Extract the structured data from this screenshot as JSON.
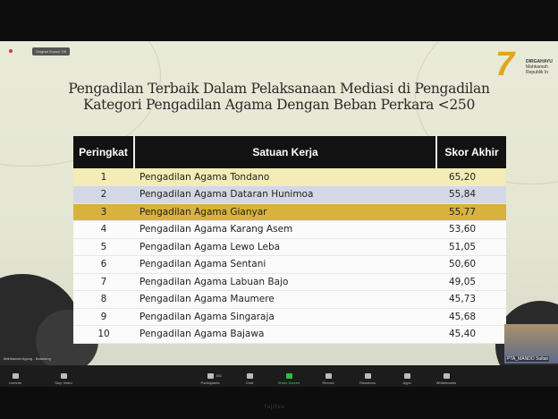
{
  "meeting": {
    "original_sound": "Original Sound: Off",
    "self_name": "Mahkamah Agung - Balairung",
    "thumbnail_name": "PTA_MANDO Sultan",
    "toolbar": [
      {
        "label": "Unmute",
        "icon": "microphone-icon"
      },
      {
        "label": "Stop Video",
        "icon": "video-camera-icon"
      },
      {
        "label": "Participants",
        "icon": "participants-icon",
        "count": "451"
      },
      {
        "label": "Chat",
        "icon": "chat-icon"
      },
      {
        "label": "Share Screen",
        "icon": "share-screen-icon"
      },
      {
        "label": "Record",
        "icon": "record-icon"
      },
      {
        "label": "Reactions",
        "icon": "reactions-icon"
      },
      {
        "label": "Apps",
        "icon": "apps-icon"
      },
      {
        "label": "Whiteboards",
        "icon": "whiteboard-icon"
      }
    ],
    "share_color": "#2fbd3c"
  },
  "slide": {
    "title_line1": "Pengadilan Terbaik Dalam Pelaksanaan Mediasi di Pengadilan",
    "title_line2": "Kategori Pengadilan Agama Dengan Beban Perkara <250",
    "logo_text": [
      "DIRGAHAYU",
      "Mahkamah",
      "Republik In"
    ],
    "table": {
      "headers": [
        "Peringkat",
        "Satuan Kerja",
        "Skor Akhir"
      ],
      "rows": [
        [
          "1",
          "Pengadilan Agama Tondano",
          "65,20"
        ],
        [
          "2",
          "Pengadilan Agama Dataran Hunimoa",
          "55,84"
        ],
        [
          "3",
          "Pengadilan Agama Gianyar",
          "55,77"
        ],
        [
          "4",
          "Pengadilan Agama Karang Asem",
          "53,60"
        ],
        [
          "5",
          "Pengadilan Agama Lewo Leba",
          "51,05"
        ],
        [
          "6",
          "Pengadilan Agama Sentani",
          "50,60"
        ],
        [
          "7",
          "Pengadilan Agama Labuan Bajo",
          "49,05"
        ],
        [
          "8",
          "Pengadilan Agama Maumere",
          "45,73"
        ],
        [
          "9",
          "Pengadilan Agama Singaraja",
          "45,68"
        ],
        [
          "10",
          "Pengadilan Agama Bajawa",
          "45,40"
        ]
      ]
    },
    "highlight_colors": [
      "#f4ecb6",
      "#d4d8e6",
      "#d8b23c"
    ]
  },
  "monitor_brand": "fujitsu"
}
